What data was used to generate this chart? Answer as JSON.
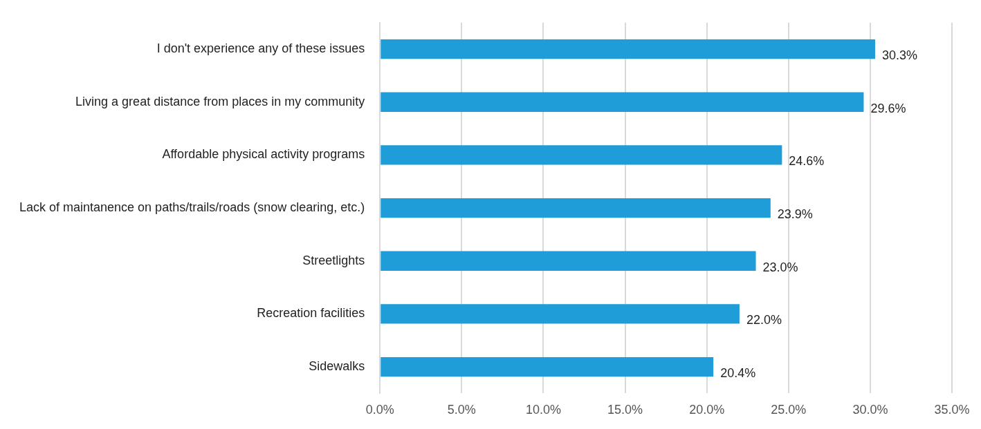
{
  "chart_data": {
    "type": "bar",
    "orientation": "horizontal",
    "categories": [
      "I don't experience any of these issues",
      "Living a great distance from places in my community",
      "Affordable physical activity programs",
      "Lack of maintanence on paths/trails/roads (snow clearing, etc.)",
      "Streetlights",
      "Recreation facilities",
      "Sidewalks"
    ],
    "values": [
      30.3,
      29.6,
      24.6,
      23.9,
      23.0,
      22.0,
      20.4
    ],
    "value_labels": [
      "30.3%",
      "29.6%",
      "24.6%",
      "23.9%",
      "23.0%",
      "22.0%",
      "20.4%"
    ],
    "color": "#1f9dd9",
    "xlim": [
      0,
      35
    ],
    "xticks": [
      {
        "value": 0,
        "label": "0.0%"
      },
      {
        "value": 5,
        "label": "5.0%"
      },
      {
        "value": 10,
        "label": "10.0%"
      },
      {
        "value": 15,
        "label": "15.0%"
      },
      {
        "value": 20,
        "label": "20.0%"
      },
      {
        "value": 25,
        "label": "25.0%"
      },
      {
        "value": 30,
        "label": "30.0%"
      },
      {
        "value": 35,
        "label": "35.0%"
      }
    ],
    "grid": "x",
    "legend": false
  }
}
